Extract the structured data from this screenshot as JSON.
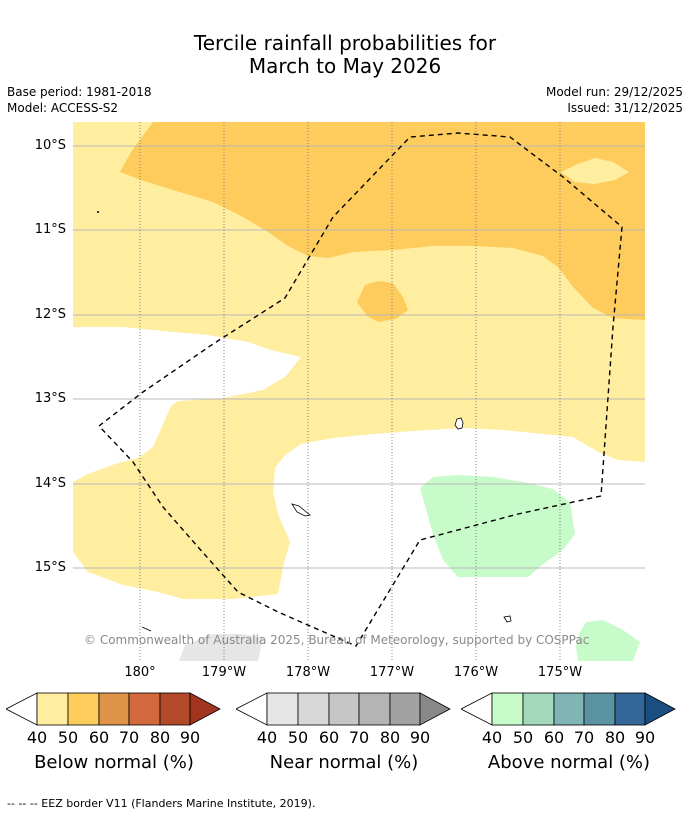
{
  "header": {
    "title_line1": "Tercile rainfall probabilities for",
    "title_line2": "March to May 2026",
    "base_period": "Base period: 1981-2018",
    "model": "Model: ACCESS-S2",
    "model_run": "Model run: 29/12/2025",
    "issued": "Issued: 31/12/2025"
  },
  "map": {
    "lat_labels": [
      "10°S",
      "11°S",
      "12°S",
      "13°S",
      "14°S",
      "15°S"
    ],
    "lon_labels": [
      "180°",
      "179°W",
      "178°W",
      "177°W",
      "176°W",
      "175°W"
    ],
    "copyright": "© Commonwealth of Australia 2025, Bureau of Meteorology, supported by COSPPac"
  },
  "colorbars": [
    {
      "name": "below",
      "title": "Below normal (%)",
      "ticks": [
        "40",
        "50",
        "60",
        "70",
        "80",
        "90"
      ],
      "colors": [
        "#ffffff",
        "#ffeda0",
        "#fecc5c",
        "#e0944a",
        "#d2693c",
        "#b24a2a",
        "#a0341f"
      ]
    },
    {
      "name": "near",
      "title": "Near normal (%)",
      "ticks": [
        "40",
        "50",
        "60",
        "70",
        "80",
        "90"
      ],
      "colors": [
        "#ffffff",
        "#e6e6e6",
        "#d7d7d7",
        "#c6c6c6",
        "#b4b4b4",
        "#a2a2a2",
        "#888888"
      ]
    },
    {
      "name": "above",
      "title": "Above normal (%)",
      "ticks": [
        "40",
        "50",
        "60",
        "70",
        "80",
        "90"
      ],
      "colors": [
        "#ffffff",
        "#c7fcca",
        "#a3d9bd",
        "#7fb5b5",
        "#5a93a2",
        "#336699",
        "#1a4d80"
      ]
    }
  ],
  "footnote": "--  --  -- EEZ border V11 (Flanders Marine Institute, 2019)."
}
